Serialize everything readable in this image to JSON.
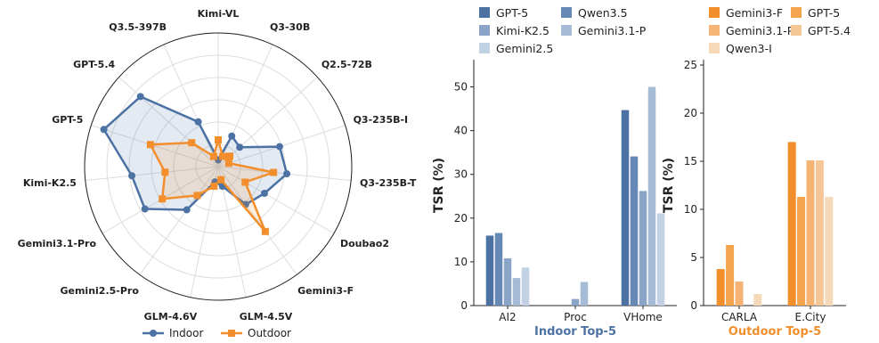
{
  "chart_data": [
    {
      "type": "radar",
      "categories": [
        "Kimi-VL",
        "Q3-30B",
        "Q2.5-72B",
        "Q3-235B-I",
        "Q3-235B-T",
        "Doubao2",
        "Gemini3-F",
        "GLM-4.5V",
        "GLM-4.6V",
        "Gemini2.5-Pro",
        "Gemini3.1-Pro",
        "Kimi-K2.5",
        "GPT-5",
        "GPT-5.4",
        "Q3.5-397B"
      ],
      "series": [
        {
          "name": "Indoor",
          "color": "#4c72a4",
          "marker": "circle",
          "values": [
            0.03,
            0.15,
            0.13,
            0.29,
            0.31,
            0.24,
            0.21,
            0.09,
            0.07,
            0.24,
            0.38,
            0.39,
            0.54,
            0.47,
            0.22
          ]
        },
        {
          "name": "Outdoor",
          "color": "#f28e2b",
          "marker": "square",
          "values": [
            0.12,
            0.05,
            0.07,
            0.05,
            0.25,
            0.14,
            0.36,
            0.06,
            0.09,
            0.16,
            0.29,
            0.24,
            0.32,
            0.16,
            0.05
          ]
        }
      ],
      "rmax": 0.6,
      "grid": true,
      "legend_position": "bottom"
    },
    {
      "type": "bar",
      "categories": [
        "AI2",
        "Proc",
        "VHome"
      ],
      "series": [
        {
          "name": "GPT-5",
          "color": "#4c72a4",
          "values": [
            16,
            0,
            44.7
          ]
        },
        {
          "name": "Qwen3.5",
          "color": "#6688b4",
          "values": [
            16.6,
            0,
            34.1
          ]
        },
        {
          "name": "Kimi-K2.5",
          "color": "#8aa5c8",
          "values": [
            10.8,
            1.5,
            26.2
          ]
        },
        {
          "name": "Gemini3.1-P",
          "color": "#a6bcd6",
          "values": [
            6.3,
            5.4,
            50
          ]
        },
        {
          "name": "Gemini2.5",
          "color": "#c2d1e3",
          "values": [
            8.7,
            0,
            21.1
          ]
        }
      ],
      "ylabel": "TSR (%)",
      "xlabel": "Indoor Top-5",
      "xlabel_color": "#4c72a4",
      "ylim": [
        0,
        55
      ],
      "yticks": [
        0,
        10,
        20,
        30,
        40,
        50
      ],
      "grid": false,
      "legend_position": "top"
    },
    {
      "type": "bar",
      "categories": [
        "CARLA",
        "E.City"
      ],
      "series": [
        {
          "name": "Gemini3-F",
          "color": "#f28e2b",
          "values": [
            3.8,
            17
          ]
        },
        {
          "name": "GPT-5",
          "color": "#f5a44e",
          "values": [
            6.3,
            11.3
          ]
        },
        {
          "name": "Gemini3.1-P",
          "color": "#f5b474",
          "values": [
            2.5,
            15.1
          ]
        },
        {
          "name": "GPT-5.4",
          "color": "#f5c696",
          "values": [
            0,
            15.1
          ]
        },
        {
          "name": "Qwen3-I",
          "color": "#f6d9b8",
          "values": [
            1.2,
            11.3
          ]
        }
      ],
      "ylabel": "TSR (%)",
      "xlabel": "Outdoor Top-5",
      "xlabel_color": "#f28e2b",
      "ylim": [
        0,
        25
      ],
      "yticks": [
        0,
        5,
        10,
        15,
        20,
        25
      ],
      "grid": false,
      "legend_position": "top"
    }
  ]
}
